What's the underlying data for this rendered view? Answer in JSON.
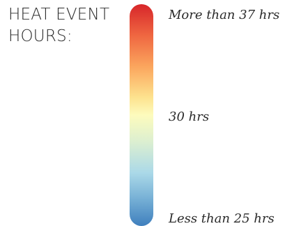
{
  "legend": {
    "title_line1": "HEAT EVENT",
    "title_line2": "HOURS:",
    "label_max": "More than 37 hrs",
    "label_mid": "30 hrs",
    "label_min": "Less than 25 hrs",
    "ramp_colors": [
      "#d7262a",
      "#ef6641",
      "#fba55d",
      "#fde28e",
      "#fdfbbd",
      "#dcefd0",
      "#abd9e8",
      "#75afd5",
      "#3f7fbd"
    ]
  }
}
